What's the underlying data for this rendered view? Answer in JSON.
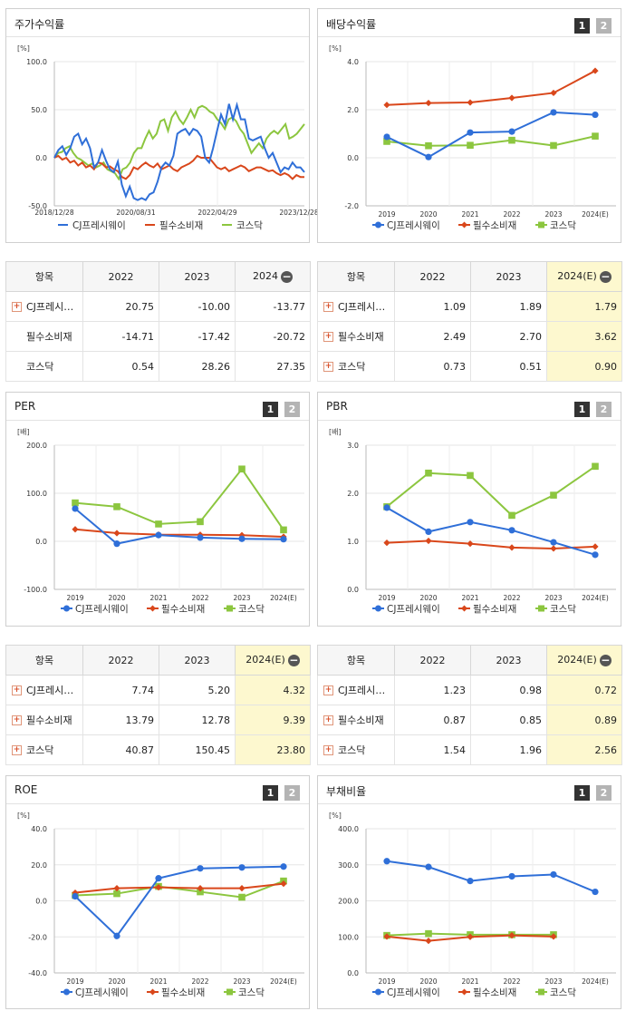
{
  "legend": [
    "CJ프레시웨이",
    "필수소비재",
    "코스닥"
  ],
  "colors": {
    "cj": "#2f6fd8",
    "ind": "#d9471b",
    "kos": "#8cc63f"
  },
  "pager": {
    "p1": "1",
    "p2": "2"
  },
  "sections": {
    "stock_return": "주가수익률",
    "dividend": "배당수익률",
    "per": "PER",
    "pbr": "PBR",
    "roe": "ROE",
    "debt": "부채비율"
  },
  "tables": {
    "stock_return": {
      "header": [
        "항목",
        "2022",
        "2023",
        "2024"
      ],
      "rows": [
        {
          "label": "CJ프레시…",
          "plus": true,
          "values": [
            "20.75",
            "-10.00",
            "-13.77"
          ]
        },
        {
          "label": "필수소비재",
          "plus": false,
          "values": [
            "-14.71",
            "-17.42",
            "-20.72"
          ]
        },
        {
          "label": "코스닥",
          "plus": false,
          "values": [
            "0.54",
            "28.26",
            "27.35"
          ]
        }
      ]
    },
    "dividend": {
      "header": [
        "항목",
        "2022",
        "2023",
        "2024(E)"
      ],
      "rows": [
        {
          "label": "CJ프레시…",
          "plus": true,
          "values": [
            "1.09",
            "1.89",
            "1.79"
          ]
        },
        {
          "label": "필수소비재",
          "plus": true,
          "values": [
            "2.49",
            "2.70",
            "3.62"
          ]
        },
        {
          "label": "코스닥",
          "plus": true,
          "values": [
            "0.73",
            "0.51",
            "0.90"
          ]
        }
      ]
    },
    "per": {
      "header": [
        "항목",
        "2022",
        "2023",
        "2024(E)"
      ],
      "rows": [
        {
          "label": "CJ프레시…",
          "plus": true,
          "values": [
            "7.74",
            "5.20",
            "4.32"
          ]
        },
        {
          "label": "필수소비재",
          "plus": true,
          "values": [
            "13.79",
            "12.78",
            "9.39"
          ]
        },
        {
          "label": "코스닥",
          "plus": true,
          "values": [
            "40.87",
            "150.45",
            "23.80"
          ]
        }
      ]
    },
    "pbr": {
      "header": [
        "항목",
        "2022",
        "2023",
        "2024(E)"
      ],
      "rows": [
        {
          "label": "CJ프레시…",
          "plus": true,
          "values": [
            "1.23",
            "0.98",
            "0.72"
          ]
        },
        {
          "label": "필수소비재",
          "plus": true,
          "values": [
            "0.87",
            "0.85",
            "0.89"
          ]
        },
        {
          "label": "코스닥",
          "plus": true,
          "values": [
            "1.54",
            "1.96",
            "2.56"
          ]
        }
      ]
    }
  },
  "chart_data": [
    {
      "id": "stock_return",
      "type": "line",
      "unit": "[%]",
      "ylim": [
        -50,
        100
      ],
      "yticks": [
        "100.0",
        "50.0",
        "0.0",
        "-50.0"
      ],
      "x_ticks": [
        "2018/12/28",
        "2020/08/31",
        "2022/04/29",
        "2023/12/28"
      ],
      "series": [
        {
          "name": "CJ프레시웨이",
          "values": [
            0,
            8,
            12,
            3,
            10,
            22,
            25,
            14,
            20,
            10,
            -10,
            -5,
            8,
            -3,
            -12,
            -15,
            -4,
            -28,
            -40,
            -30,
            -42,
            -44,
            -42,
            -44,
            -38,
            -36,
            -25,
            -10,
            -5,
            -8,
            2,
            25,
            28,
            30,
            24,
            30,
            28,
            22,
            0,
            -5,
            10,
            28,
            45,
            35,
            56,
            40,
            55,
            40,
            40,
            20,
            18,
            20,
            22,
            10,
            0,
            5,
            -5,
            -15,
            -10,
            -12,
            -5,
            -10,
            -10,
            -15
          ]
        },
        {
          "name": "필수소비재",
          "values": [
            0,
            2,
            -2,
            0,
            -5,
            -3,
            -8,
            -5,
            -10,
            -8,
            -12,
            -5,
            -6,
            -10,
            -9,
            -12,
            -14,
            -20,
            -22,
            -18,
            -10,
            -12,
            -8,
            -5,
            -8,
            -10,
            -6,
            -12,
            -10,
            -8,
            -12,
            -14,
            -10,
            -8,
            -6,
            -3,
            2,
            0,
            0,
            0,
            -5,
            -10,
            -12,
            -10,
            -14,
            -12,
            -10,
            -8,
            -10,
            -14,
            -12,
            -10,
            -10,
            -12,
            -14,
            -13,
            -16,
            -18,
            -16,
            -18,
            -22,
            -18,
            -20,
            -20
          ]
        },
        {
          "name": "코스닥",
          "values": [
            0,
            5,
            6,
            10,
            12,
            5,
            0,
            -2,
            -5,
            -8,
            -6,
            -10,
            -8,
            -5,
            -12,
            -14,
            -16,
            -22,
            -12,
            -10,
            -5,
            5,
            10,
            10,
            20,
            28,
            20,
            25,
            38,
            40,
            28,
            42,
            48,
            40,
            35,
            42,
            50,
            42,
            52,
            54,
            52,
            48,
            46,
            40,
            36,
            30,
            40,
            42,
            38,
            30,
            25,
            15,
            5,
            10,
            15,
            10,
            20,
            25,
            28,
            25,
            30,
            35,
            20,
            22,
            25,
            30,
            35
          ]
        }
      ]
    },
    {
      "id": "dividend",
      "type": "line",
      "unit": "[%]",
      "ylim": [
        -2,
        4
      ],
      "yticks": [
        "4.0",
        "2.0",
        "0.0",
        "-2.0"
      ],
      "categories": [
        "2019",
        "2020",
        "2021",
        "2022",
        "2023",
        "2024(E)"
      ],
      "series": [
        {
          "name": "CJ프레시웨이",
          "values": [
            0.87,
            0.03,
            1.05,
            1.09,
            1.89,
            1.79
          ]
        },
        {
          "name": "필수소비재",
          "values": [
            2.2,
            2.28,
            2.3,
            2.49,
            2.7,
            3.62
          ]
        },
        {
          "name": "코스닥",
          "values": [
            0.68,
            0.5,
            0.52,
            0.73,
            0.51,
            0.9
          ]
        }
      ]
    },
    {
      "id": "per",
      "type": "line",
      "unit": "[배]",
      "ylim": [
        -100,
        200
      ],
      "yticks": [
        "200.0",
        "100.0",
        "0.0",
        "-100.0"
      ],
      "categories": [
        "2019",
        "2020",
        "2021",
        "2022",
        "2023",
        "2024(E)"
      ],
      "series": [
        {
          "name": "CJ프레시웨이",
          "values": [
            68,
            -5,
            13,
            7.74,
            5.2,
            4.32
          ]
        },
        {
          "name": "필수소비재",
          "values": [
            25,
            17,
            14,
            13.79,
            12.78,
            9.39
          ]
        },
        {
          "name": "코스닥",
          "values": [
            80,
            72,
            36,
            40.87,
            150.45,
            23.8
          ]
        }
      ]
    },
    {
      "id": "pbr",
      "type": "line",
      "unit": "[배]",
      "ylim": [
        0,
        3
      ],
      "yticks": [
        "3.0",
        "2.0",
        "1.0",
        "0.0"
      ],
      "categories": [
        "2019",
        "2020",
        "2021",
        "2022",
        "2023",
        "2024(E)"
      ],
      "series": [
        {
          "name": "CJ프레시웨이",
          "values": [
            1.7,
            1.2,
            1.4,
            1.23,
            0.98,
            0.72
          ]
        },
        {
          "name": "필수소비재",
          "values": [
            0.97,
            1.01,
            0.95,
            0.87,
            0.85,
            0.89
          ]
        },
        {
          "name": "코스닥",
          "values": [
            1.72,
            2.42,
            2.37,
            1.54,
            1.96,
            2.56
          ]
        }
      ]
    },
    {
      "id": "roe",
      "type": "line",
      "unit": "[%]",
      "ylim": [
        -40,
        40
      ],
      "yticks": [
        "40.0",
        "20.0",
        "0.0",
        "-20.0",
        "-40.0"
      ],
      "categories": [
        "2019",
        "2020",
        "2021",
        "2022",
        "2023",
        "2024(E)"
      ],
      "series": [
        {
          "name": "CJ프레시웨이",
          "values": [
            2.5,
            -19.5,
            12.5,
            18,
            18.5,
            19
          ]
        },
        {
          "name": "필수소비재",
          "values": [
            4.5,
            7,
            7.5,
            7,
            7,
            9.5
          ]
        },
        {
          "name": "코스닥",
          "values": [
            3,
            4,
            8,
            5,
            2,
            11
          ]
        }
      ]
    },
    {
      "id": "debt",
      "type": "line",
      "unit": "[%]",
      "ylim": [
        0,
        400
      ],
      "yticks": [
        "400.0",
        "300.0",
        "200.0",
        "100.0",
        "0.0"
      ],
      "categories": [
        "2019",
        "2020",
        "2021",
        "2022",
        "2023",
        "2024(E)"
      ],
      "series": [
        {
          "name": "CJ프레시웨이",
          "values": [
            310,
            294,
            255,
            268,
            273,
            225
          ]
        },
        {
          "name": "필수소비재",
          "values": [
            101,
            89,
            100,
            104,
            101,
            null
          ]
        },
        {
          "name": "코스닥",
          "values": [
            104,
            109,
            106,
            106,
            106,
            null
          ]
        }
      ]
    }
  ]
}
